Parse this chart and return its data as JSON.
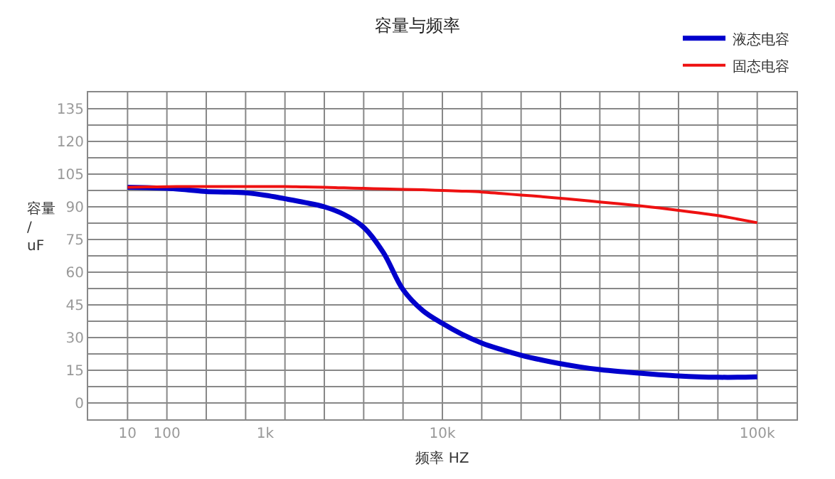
{
  "chart_data": {
    "type": "line",
    "title": "容量与频率",
    "xlabel": "频率 HZ",
    "ylabel": "容量\n/\nuF",
    "categories": [
      "10",
      null,
      "100",
      null,
      null,
      null,
      null,
      "1k",
      null,
      null,
      null,
      null,
      null,
      null,
      null,
      null,
      "10k",
      null,
      null,
      null,
      null,
      null,
      null,
      null,
      null,
      null,
      null,
      null,
      null,
      null,
      null,
      null,
      "100k"
    ],
    "ylim": [
      -7.5,
      142.5
    ],
    "yticks": [
      {
        "value": -7.5,
        "label": null
      },
      0,
      {
        "value": 7.5,
        "label": null
      },
      15,
      {
        "value": 22.5,
        "label": null
      },
      30,
      {
        "value": 37.5,
        "label": null
      },
      45,
      {
        "value": 52.5,
        "label": null
      },
      60,
      {
        "value": 67.5,
        "label": null
      },
      75,
      {
        "value": 82.5,
        "label": null
      },
      90,
      {
        "value": 97.5,
        "label": null
      },
      105,
      {
        "value": 112.5,
        "label": null
      },
      120,
      {
        "value": 127.5,
        "label": null
      },
      135,
      {
        "value": 142.5,
        "label": null
      }
    ],
    "series": [
      {
        "name": "液态电容",
        "color": "#0000cc",
        "values": [
          99,
          98.8,
          98.5,
          97.8,
          97,
          96.8,
          96.4,
          95.3,
          93.7,
          92,
          90,
          86.5,
          80.6,
          69,
          52,
          42.4,
          36.5,
          31.5,
          27.5,
          24.5,
          21.9,
          19.8,
          18,
          16.5,
          15.3,
          14.4,
          13.7,
          13,
          12.4,
          12,
          11.8,
          11.8,
          12
        ]
      },
      {
        "name": "固态电容",
        "color": "#ee1111",
        "values": [
          99,
          99.1,
          99.2,
          99.3,
          99.3,
          99.3,
          99.3,
          99.3,
          99.3,
          99.1,
          99,
          98.7,
          98.5,
          98.2,
          98,
          97.8,
          97.5,
          97.2,
          96.8,
          96.1,
          95.4,
          94.7,
          93.9,
          93.1,
          92.2,
          91.4,
          90.5,
          89.5,
          88.4,
          87.2,
          86,
          84.4,
          82.7
        ]
      }
    ],
    "grid": true,
    "legend": "top right",
    "marker": "none",
    "line_style": "solid"
  }
}
